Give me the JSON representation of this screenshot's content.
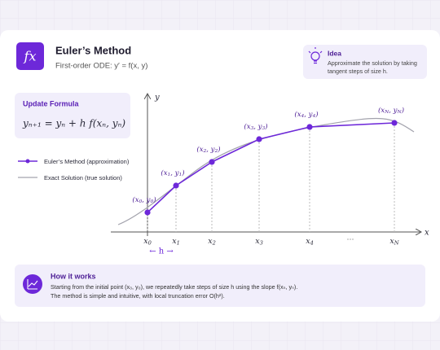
{
  "header": {
    "icon": "fx",
    "title": "Euler’s Method",
    "subtitle": "First-order ODE:  y′ = f(x, y)"
  },
  "idea": {
    "title": "Idea",
    "lines": [
      "Approximate the solution by taking",
      "tangent steps of size h."
    ]
  },
  "formula": {
    "title": "Update Formula",
    "expr": "yₙ₊₁ = yₙ + h f(xₙ, yₙ)"
  },
  "legend": [
    {
      "label": "Euler’s Method (approximation)",
      "color": "#6d28d9"
    },
    {
      "label": "Exact Solution (true solution)",
      "color": "#a3a3ad"
    }
  ],
  "axes": {
    "x": "x",
    "y": "y"
  },
  "points": [
    {
      "label": [
        "(x",
        "0",
        ", y",
        "0",
        ")"
      ],
      "tick": [
        "x",
        "0"
      ]
    },
    {
      "label": [
        "(x",
        "1",
        ", y",
        "1",
        ")"
      ],
      "tick": [
        "x",
        "1"
      ]
    },
    {
      "label": [
        "(x",
        "2",
        ", y",
        "2",
        ")"
      ],
      "tick": [
        "x",
        "2"
      ]
    },
    {
      "label": [
        "(x",
        "3",
        ", y",
        "3",
        ")"
      ],
      "tick": [
        "x",
        "3"
      ]
    },
    {
      "label": [
        "(x",
        "4",
        ", y",
        "4",
        ")"
      ],
      "tick": [
        "x",
        "4"
      ]
    },
    {
      "label": [
        "(x",
        "N",
        ", y",
        "N",
        ")"
      ],
      "tick": [
        "x",
        "N"
      ]
    }
  ],
  "ellipsis": "···",
  "step": "← h →",
  "how": {
    "title": "How it works",
    "lines": [
      "Starting from the initial point (x₀, y₀), we repeatedly take steps of size h using the slope f(xₙ, yₙ).",
      "The method is simple and intuitive, with local truncation error O(h²)."
    ]
  }
}
